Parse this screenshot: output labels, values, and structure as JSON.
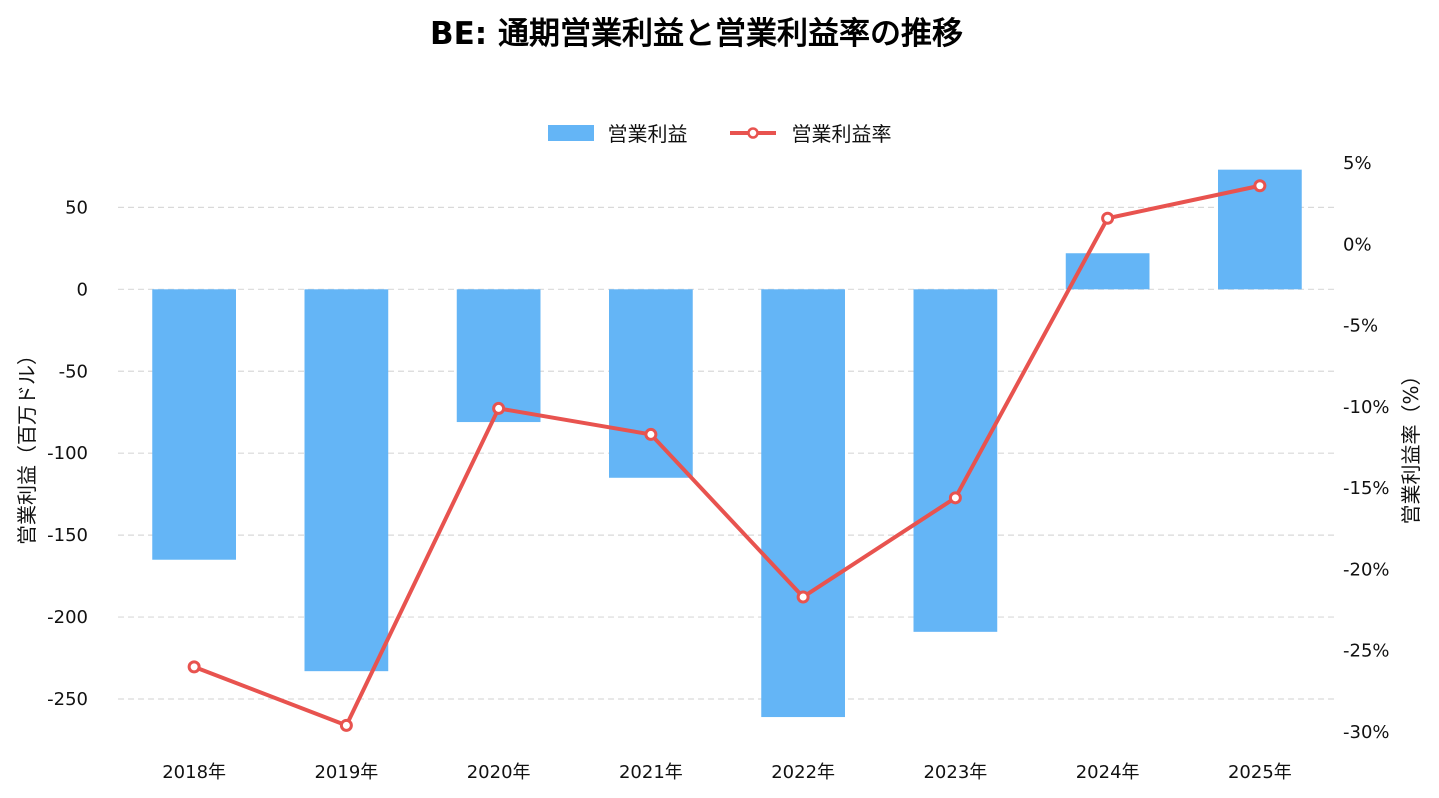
{
  "chart_data": {
    "type": "bar",
    "title": "BE: 通期営業利益と営業利益率の推移",
    "categories": [
      "2018年",
      "2019年",
      "2020年",
      "2021年",
      "2022年",
      "2023年",
      "2024年",
      "2025年"
    ],
    "series": [
      {
        "name": "営業利益",
        "type": "bar",
        "axis": "left",
        "color": "#64b5f6",
        "values": [
          -165,
          -233,
          -81,
          -115,
          -261,
          -209,
          22,
          73
        ]
      },
      {
        "name": "営業利益率",
        "type": "line",
        "axis": "right",
        "color": "#e8534f",
        "values": [
          -26.0,
          -29.6,
          -10.1,
          -11.7,
          -21.7,
          -15.6,
          1.6,
          3.6
        ]
      }
    ],
    "ylabel": "営業利益（百万ドル）",
    "y2label": "営業利益率（%）",
    "ylim": [
      -275,
      85
    ],
    "y2lim": [
      -30.5,
      5.8
    ],
    "yticks": [
      50,
      0,
      -50,
      -100,
      -150,
      -200,
      -250
    ],
    "ytick_labels": [
      "50",
      "0",
      "-50",
      "-100",
      "-150",
      "-200",
      "-250"
    ],
    "y2ticks": [
      5,
      0,
      -5,
      -10,
      -15,
      -20,
      -25,
      -30
    ],
    "y2tick_labels": [
      "5%",
      "0%",
      "-5%",
      "-10%",
      "-15%",
      "-20%",
      "-25%",
      "-30%"
    ],
    "grid": true,
    "legend": "top-center"
  }
}
